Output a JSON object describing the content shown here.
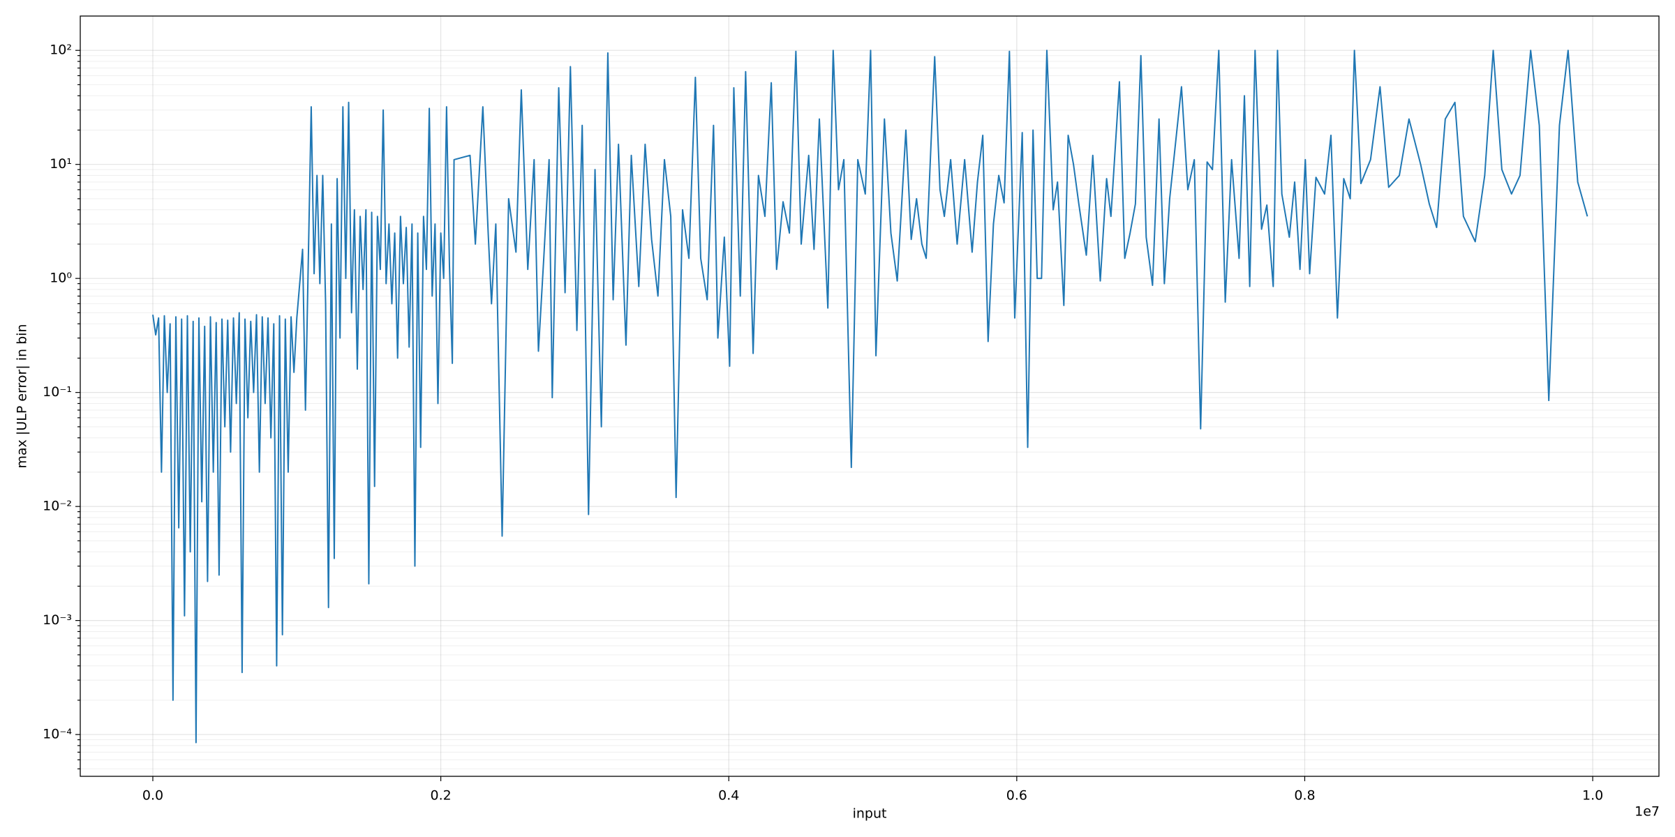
{
  "chart_data": {
    "type": "line",
    "log_y": true,
    "grid": true,
    "color": "#1f77b4",
    "xlabel": "input",
    "ylabel": "max |ULP error| in bin",
    "x_offset_label": "1e7",
    "xlim": [
      -504000,
      10460000
    ],
    "xticks": [
      {
        "value": 0,
        "label": "0.0"
      },
      {
        "value": 2000000,
        "label": "0.2"
      },
      {
        "value": 4000000,
        "label": "0.4"
      },
      {
        "value": 6000000,
        "label": "0.6"
      },
      {
        "value": 8000000,
        "label": "0.8"
      },
      {
        "value": 10000000,
        "label": "1.0"
      }
    ],
    "ylim": [
      4.3e-05,
      200
    ],
    "yticks": [
      {
        "value": 0.0001,
        "label": "10⁻⁴"
      },
      {
        "value": 0.001,
        "label": "10⁻³"
      },
      {
        "value": 0.01,
        "label": "10⁻²"
      },
      {
        "value": 0.1,
        "label": "10⁻¹"
      },
      {
        "value": 1,
        "label": "10⁰"
      },
      {
        "value": 10,
        "label": "10¹"
      },
      {
        "value": 100,
        "label": "10²"
      }
    ],
    "yminorticks": [
      5e-05,
      6e-05,
      7e-05,
      8e-05,
      9e-05,
      0.0002,
      0.0003,
      0.0004,
      0.0005,
      0.0006,
      0.0007,
      0.0008,
      0.0009,
      0.002,
      0.003,
      0.004,
      0.005,
      0.006,
      0.007,
      0.008,
      0.009,
      0.02,
      0.03,
      0.04,
      0.05,
      0.06,
      0.07,
      0.08,
      0.09,
      0.2,
      0.3,
      0.4,
      0.5,
      0.6,
      0.7,
      0.8,
      0.9,
      2,
      3,
      4,
      5,
      6,
      7,
      8,
      9,
      20,
      30,
      40,
      50,
      60,
      70,
      80,
      90
    ],
    "x": [
      0,
      20000,
      40000,
      60000,
      80000,
      100000,
      120000,
      140000,
      160000,
      180000,
      200000,
      220000,
      240000,
      260000,
      280000,
      300000,
      320000,
      340000,
      360000,
      380000,
      400000,
      420000,
      440000,
      460000,
      480000,
      500000,
      520000,
      540000,
      560000,
      580000,
      600000,
      620000,
      640000,
      660000,
      680000,
      700000,
      720000,
      740000,
      760000,
      780000,
      800000,
      820000,
      840000,
      860000,
      880000,
      900000,
      920000,
      940000,
      960000,
      980000,
      1000000,
      1040000,
      1060000,
      1080000,
      1100000,
      1120000,
      1140000,
      1160000,
      1180000,
      1200000,
      1220000,
      1240000,
      1260000,
      1280000,
      1300000,
      1320000,
      1340000,
      1360000,
      1380000,
      1400000,
      1420000,
      1440000,
      1460000,
      1480000,
      1500000,
      1520000,
      1540000,
      1560000,
      1580000,
      1600000,
      1620000,
      1640000,
      1660000,
      1680000,
      1700000,
      1720000,
      1740000,
      1760000,
      1780000,
      1800000,
      1820000,
      1840000,
      1860000,
      1880000,
      1900000,
      1920000,
      1940000,
      1960000,
      1980000,
      2000000,
      2020000,
      2040000,
      2060000,
      2080000,
      2092000,
      2203000,
      2240000,
      2292000,
      2329000,
      2352000,
      2382000,
      2426000,
      2471000,
      2522000,
      2559000,
      2604000,
      2648000,
      2678000,
      2715000,
      2752000,
      2774000,
      2819000,
      2863000,
      2900000,
      2945000,
      2982000,
      3026000,
      3071000,
      3115000,
      3160000,
      3197000,
      3234000,
      3286000,
      3323000,
      3375000,
      3419000,
      3464000,
      3508000,
      3553000,
      3597000,
      3634000,
      3679000,
      3723000,
      3768000,
      3805000,
      3850000,
      3894000,
      3924000,
      3969000,
      4006000,
      4035000,
      4080000,
      4117000,
      4169000,
      4206000,
      4251000,
      4295000,
      4332000,
      4377000,
      4421000,
      4466000,
      4503000,
      4555000,
      4592000,
      4629000,
      4688000,
      4725000,
      4762000,
      4799000,
      4851000,
      4896000,
      4948000,
      4985000,
      5022000,
      5081000,
      5126000,
      5170000,
      5230000,
      5267000,
      5304000,
      5341000,
      5371000,
      5430000,
      5467000,
      5497000,
      5541000,
      5586000,
      5638000,
      5690000,
      5727000,
      5764000,
      5801000,
      5838000,
      5875000,
      5912000,
      5949000,
      5986000,
      6038000,
      6076000,
      6113000,
      6142000,
      6172000,
      6209000,
      6253000,
      6283000,
      6327000,
      6357000,
      6394000,
      6431000,
      6483000,
      6528000,
      6580000,
      6624000,
      6654000,
      6713000,
      6750000,
      6787000,
      6824000,
      6862000,
      6899000,
      6943000,
      6988000,
      7025000,
      7062000,
      7144000,
      7188000,
      7233000,
      7277000,
      7322000,
      7359000,
      7403000,
      7448000,
      7492000,
      7544000,
      7581000,
      7618000,
      7655000,
      7700000,
      7737000,
      7781000,
      7811000,
      7841000,
      7893000,
      7930000,
      7967000,
      8004000,
      8034000,
      8078000,
      8138000,
      8182000,
      8227000,
      8271000,
      8316000,
      8345000,
      8390000,
      8457000,
      8523000,
      8583000,
      8657000,
      8724000,
      8805000,
      8865000,
      8916000,
      8976000,
      9043000,
      9102000,
      9184000,
      9250000,
      9309000,
      9369000,
      9436000,
      9495000,
      9569000,
      9629000,
      9695000,
      9769000,
      9829000,
      9896000,
      9963000
    ],
    "values": [
      0.48,
      0.32,
      0.45,
      0.02,
      0.47,
      0.1,
      0.4,
      0.0002,
      0.46,
      0.0065,
      0.44,
      0.0011,
      0.47,
      0.004,
      0.42,
      8.5e-05,
      0.45,
      0.011,
      0.38,
      0.0022,
      0.46,
      0.02,
      0.41,
      0.0025,
      0.44,
      0.05,
      0.43,
      0.03,
      0.45,
      0.08,
      0.5,
      0.00035,
      0.44,
      0.06,
      0.42,
      0.1,
      0.48,
      0.02,
      0.46,
      0.08,
      0.45,
      0.04,
      0.4,
      0.0004,
      0.47,
      0.00075,
      0.44,
      0.02,
      0.46,
      0.15,
      0.45,
      1.8,
      0.07,
      1.5,
      32,
      1.1,
      8,
      0.9,
      8,
      0.6,
      0.0013,
      3,
      0.0035,
      7.5,
      0.3,
      32,
      1,
      35,
      0.5,
      4,
      0.16,
      3.5,
      0.8,
      4,
      0.0021,
      3.8,
      0.015,
      3.5,
      1.2,
      30,
      0.9,
      3,
      0.6,
      2.5,
      0.2,
      3.5,
      0.9,
      2.8,
      0.25,
      3,
      0.003,
      2.5,
      0.033,
      3.5,
      1.2,
      31,
      0.7,
      3,
      0.08,
      2.5,
      1,
      32,
      1.3,
      0.18,
      11,
      12,
      2,
      32,
      2.5,
      0.6,
      3,
      0.0055,
      5,
      1.7,
      45,
      1.2,
      11,
      0.23,
      1.5,
      11,
      0.09,
      47,
      0.75,
      72,
      0.35,
      22,
      0.0085,
      9,
      0.05,
      95,
      0.65,
      15,
      0.26,
      12,
      0.85,
      15,
      2.2,
      0.7,
      11,
      3.5,
      0.012,
      4,
      1.5,
      58,
      1.5,
      0.65,
      22,
      0.3,
      2.3,
      0.17,
      47,
      0.7,
      65,
      0.22,
      8,
      3.5,
      52,
      1.2,
      4.7,
      2.5,
      98,
      2,
      12,
      1.8,
      25,
      0.55,
      100,
      6,
      11,
      0.022,
      11,
      5.5,
      100,
      0.21,
      25,
      2.5,
      0.95,
      20,
      2.2,
      5,
      2,
      1.5,
      88,
      6,
      3.5,
      11,
      2,
      11,
      1.7,
      7,
      18,
      0.28,
      3,
      8,
      4.6,
      98,
      0.45,
      19,
      0.033,
      20,
      1,
      1,
      100,
      4,
      7,
      0.58,
      18,
      10,
      4.5,
      1.6,
      12,
      0.95,
      7.5,
      3.5,
      53,
      1.5,
      2.5,
      4.5,
      90,
      2.3,
      0.87,
      25,
      0.9,
      5,
      48,
      6,
      11,
      0.048,
      10.5,
      9,
      100,
      0.62,
      11,
      1.5,
      40,
      0.85,
      100,
      2.7,
      4.4,
      0.85,
      100,
      5.5,
      2.3,
      7,
      1.2,
      11,
      1.1,
      7.7,
      5.5,
      18,
      0.45,
      7.5,
      5,
      100,
      6.8,
      11,
      48,
      6.3,
      8,
      25,
      10,
      4.5,
      2.8,
      25,
      35,
      3.5,
      2.1,
      8,
      100,
      9,
      5.5,
      8,
      100,
      22,
      0.085,
      22,
      100,
      7,
      3.5
    ]
  }
}
